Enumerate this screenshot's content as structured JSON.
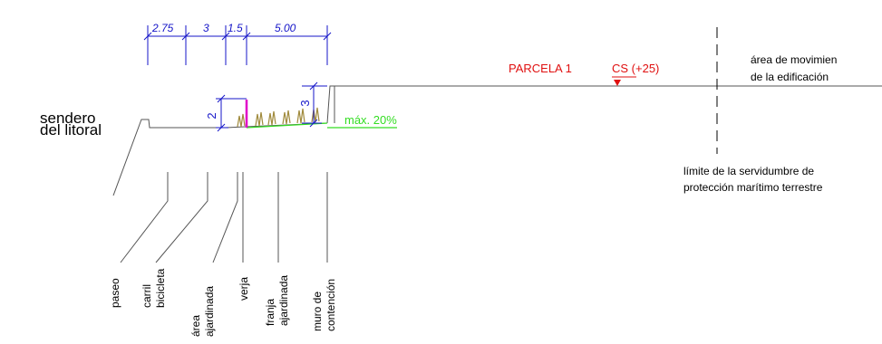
{
  "dimensions_top": [
    "2.75",
    "3",
    "1.5",
    "5.00"
  ],
  "dimensions_vertical": {
    "fence_height": "2",
    "wall_height": "3"
  },
  "sendero": [
    "sendero",
    "del litoral"
  ],
  "parcela": "PARCELA 1",
  "cota": "CS (+25)",
  "slope": "máx. 20%",
  "area_movimiento": [
    "área de movimien",
    "de la edificación"
  ],
  "limite": [
    "límite de la servidumbre de",
    "protección marítimo terrestre"
  ],
  "labels": [
    [
      "paseo"
    ],
    [
      "carril",
      "bicicleta"
    ],
    [
      "área",
      "ajardinada"
    ],
    [
      "verja"
    ],
    [
      "franja",
      "ajardinada"
    ],
    [
      "muro de",
      "contención"
    ]
  ],
  "colors": {
    "dimension": "#1414c8",
    "parcel_text": "#e01010",
    "slope": "#33dd22",
    "fence": "#e000c8",
    "vegetation": "#a08a3c",
    "line": "#555555"
  }
}
